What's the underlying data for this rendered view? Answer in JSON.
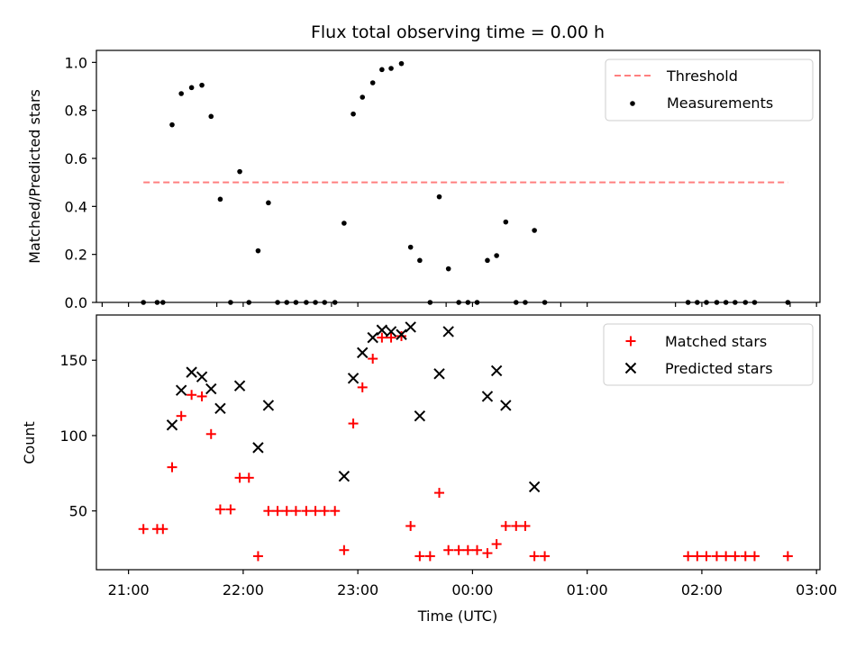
{
  "figure_title": "Flux total observing time = 0.00 h",
  "x_axis_label": "Time (UTC)",
  "x_tick_labels": [
    "21:00",
    "22:00",
    "23:00",
    "00:00",
    "01:00",
    "02:00",
    "03:00"
  ],
  "colors": {
    "threshold": "#ff7f7f",
    "measurements": "#000000",
    "matched": "#ff0000",
    "predicted": "#000000"
  },
  "chart_data": [
    {
      "type": "scatter",
      "ylabel": "Matched/Predicted stars",
      "xlabel": "",
      "x_unit": "hours since 21:00 UTC",
      "xlim": [
        -0.28,
        6.03
      ],
      "ylim": [
        0,
        1.05
      ],
      "y_ticks": [
        0.0,
        0.2,
        0.4,
        0.6,
        0.8,
        1.0
      ],
      "y_tick_labels": [
        "0.0",
        "0.2",
        "0.4",
        "0.6",
        "0.8",
        "1.0"
      ],
      "grid": false,
      "legend_position": "top-right",
      "threshold": {
        "name": "Threshold",
        "value": 0.5,
        "x_range": [
          0.13,
          5.75
        ],
        "style": "dashed"
      },
      "series": [
        {
          "name": "Measurements",
          "points": [
            [
              0.13,
              0.0
            ],
            [
              0.25,
              0.0
            ],
            [
              0.3,
              0.0
            ],
            [
              0.38,
              0.74
            ],
            [
              0.46,
              0.87
            ],
            [
              0.55,
              0.895
            ],
            [
              0.64,
              0.905
            ],
            [
              0.72,
              0.775
            ],
            [
              0.8,
              0.43
            ],
            [
              0.89,
              0.0
            ],
            [
              0.97,
              0.545
            ],
            [
              1.05,
              0.0
            ],
            [
              1.13,
              0.215
            ],
            [
              1.22,
              0.415
            ],
            [
              1.3,
              0.0
            ],
            [
              1.38,
              0.0
            ],
            [
              1.46,
              0.0
            ],
            [
              1.55,
              0.0
            ],
            [
              1.63,
              0.0
            ],
            [
              1.71,
              0.0
            ],
            [
              1.8,
              0.0
            ],
            [
              1.88,
              0.33
            ],
            [
              1.96,
              0.785
            ],
            [
              2.04,
              0.855
            ],
            [
              2.13,
              0.915
            ],
            [
              2.21,
              0.97
            ],
            [
              2.29,
              0.975
            ],
            [
              2.38,
              0.995
            ],
            [
              2.46,
              0.23
            ],
            [
              2.54,
              0.175
            ],
            [
              2.63,
              0.0
            ],
            [
              2.71,
              0.44
            ],
            [
              2.79,
              0.14
            ],
            [
              2.88,
              0.0
            ],
            [
              2.96,
              0.0
            ],
            [
              3.04,
              0.0
            ],
            [
              3.13,
              0.175
            ],
            [
              3.21,
              0.195
            ],
            [
              3.29,
              0.335
            ],
            [
              3.38,
              0.0
            ],
            [
              3.46,
              0.0
            ],
            [
              3.54,
              0.3
            ],
            [
              3.63,
              0.0
            ],
            [
              4.88,
              0.0
            ],
            [
              4.96,
              0.0
            ],
            [
              5.04,
              0.0
            ],
            [
              5.13,
              0.0
            ],
            [
              5.21,
              0.0
            ],
            [
              5.29,
              0.0
            ],
            [
              5.38,
              0.0
            ],
            [
              5.46,
              0.0
            ],
            [
              5.75,
              0.0
            ]
          ]
        }
      ]
    },
    {
      "type": "scatter",
      "ylabel": "Count",
      "xlabel": "Time (UTC)",
      "x_unit": "hours since 21:00 UTC",
      "xlim": [
        -0.28,
        6.03
      ],
      "ylim": [
        11,
        180
      ],
      "y_ticks": [
        50,
        100,
        150
      ],
      "y_tick_labels": [
        "50",
        "100",
        "150"
      ],
      "grid": false,
      "legend_position": "top-right",
      "series": [
        {
          "name": "Matched stars",
          "marker": "plus",
          "points": [
            [
              0.13,
              38
            ],
            [
              0.25,
              38
            ],
            [
              0.3,
              38
            ],
            [
              0.38,
              79
            ],
            [
              0.46,
              113
            ],
            [
              0.55,
              127
            ],
            [
              0.64,
              126
            ],
            [
              0.72,
              101
            ],
            [
              0.8,
              51
            ],
            [
              0.89,
              51
            ],
            [
              0.97,
              72
            ],
            [
              1.05,
              72
            ],
            [
              1.13,
              20
            ],
            [
              1.22,
              50
            ],
            [
              1.3,
              50
            ],
            [
              1.38,
              50
            ],
            [
              1.46,
              50
            ],
            [
              1.55,
              50
            ],
            [
              1.63,
              50
            ],
            [
              1.71,
              50
            ],
            [
              1.8,
              50
            ],
            [
              1.88,
              24
            ],
            [
              1.96,
              108
            ],
            [
              2.04,
              132
            ],
            [
              2.13,
              151
            ],
            [
              2.21,
              165
            ],
            [
              2.29,
              165
            ],
            [
              2.38,
              166
            ],
            [
              2.46,
              40
            ],
            [
              2.54,
              20
            ],
            [
              2.63,
              20
            ],
            [
              2.71,
              62
            ],
            [
              2.79,
              24
            ],
            [
              2.88,
              24
            ],
            [
              2.96,
              24
            ],
            [
              3.04,
              24
            ],
            [
              3.13,
              22
            ],
            [
              3.21,
              28
            ],
            [
              3.29,
              40
            ],
            [
              3.38,
              40
            ],
            [
              3.46,
              40
            ],
            [
              3.54,
              20
            ],
            [
              3.63,
              20
            ],
            [
              4.88,
              20
            ],
            [
              4.96,
              20
            ],
            [
              5.04,
              20
            ],
            [
              5.13,
              20
            ],
            [
              5.21,
              20
            ],
            [
              5.29,
              20
            ],
            [
              5.38,
              20
            ],
            [
              5.46,
              20
            ],
            [
              5.75,
              20
            ]
          ]
        },
        {
          "name": "Predicted stars",
          "marker": "x",
          "points": [
            [
              0.38,
              107
            ],
            [
              0.46,
              130
            ],
            [
              0.55,
              142
            ],
            [
              0.64,
              139
            ],
            [
              0.72,
              131
            ],
            [
              0.8,
              118
            ],
            [
              0.97,
              133
            ],
            [
              1.13,
              92
            ],
            [
              1.22,
              120
            ],
            [
              1.88,
              73
            ],
            [
              1.96,
              138
            ],
            [
              2.04,
              155
            ],
            [
              2.13,
              165
            ],
            [
              2.21,
              170
            ],
            [
              2.29,
              169
            ],
            [
              2.38,
              167
            ],
            [
              2.46,
              172
            ],
            [
              2.54,
              113
            ],
            [
              2.71,
              141
            ],
            [
              2.79,
              169
            ],
            [
              3.13,
              126
            ],
            [
              3.21,
              143
            ],
            [
              3.29,
              120
            ],
            [
              3.54,
              66
            ]
          ]
        }
      ]
    }
  ]
}
